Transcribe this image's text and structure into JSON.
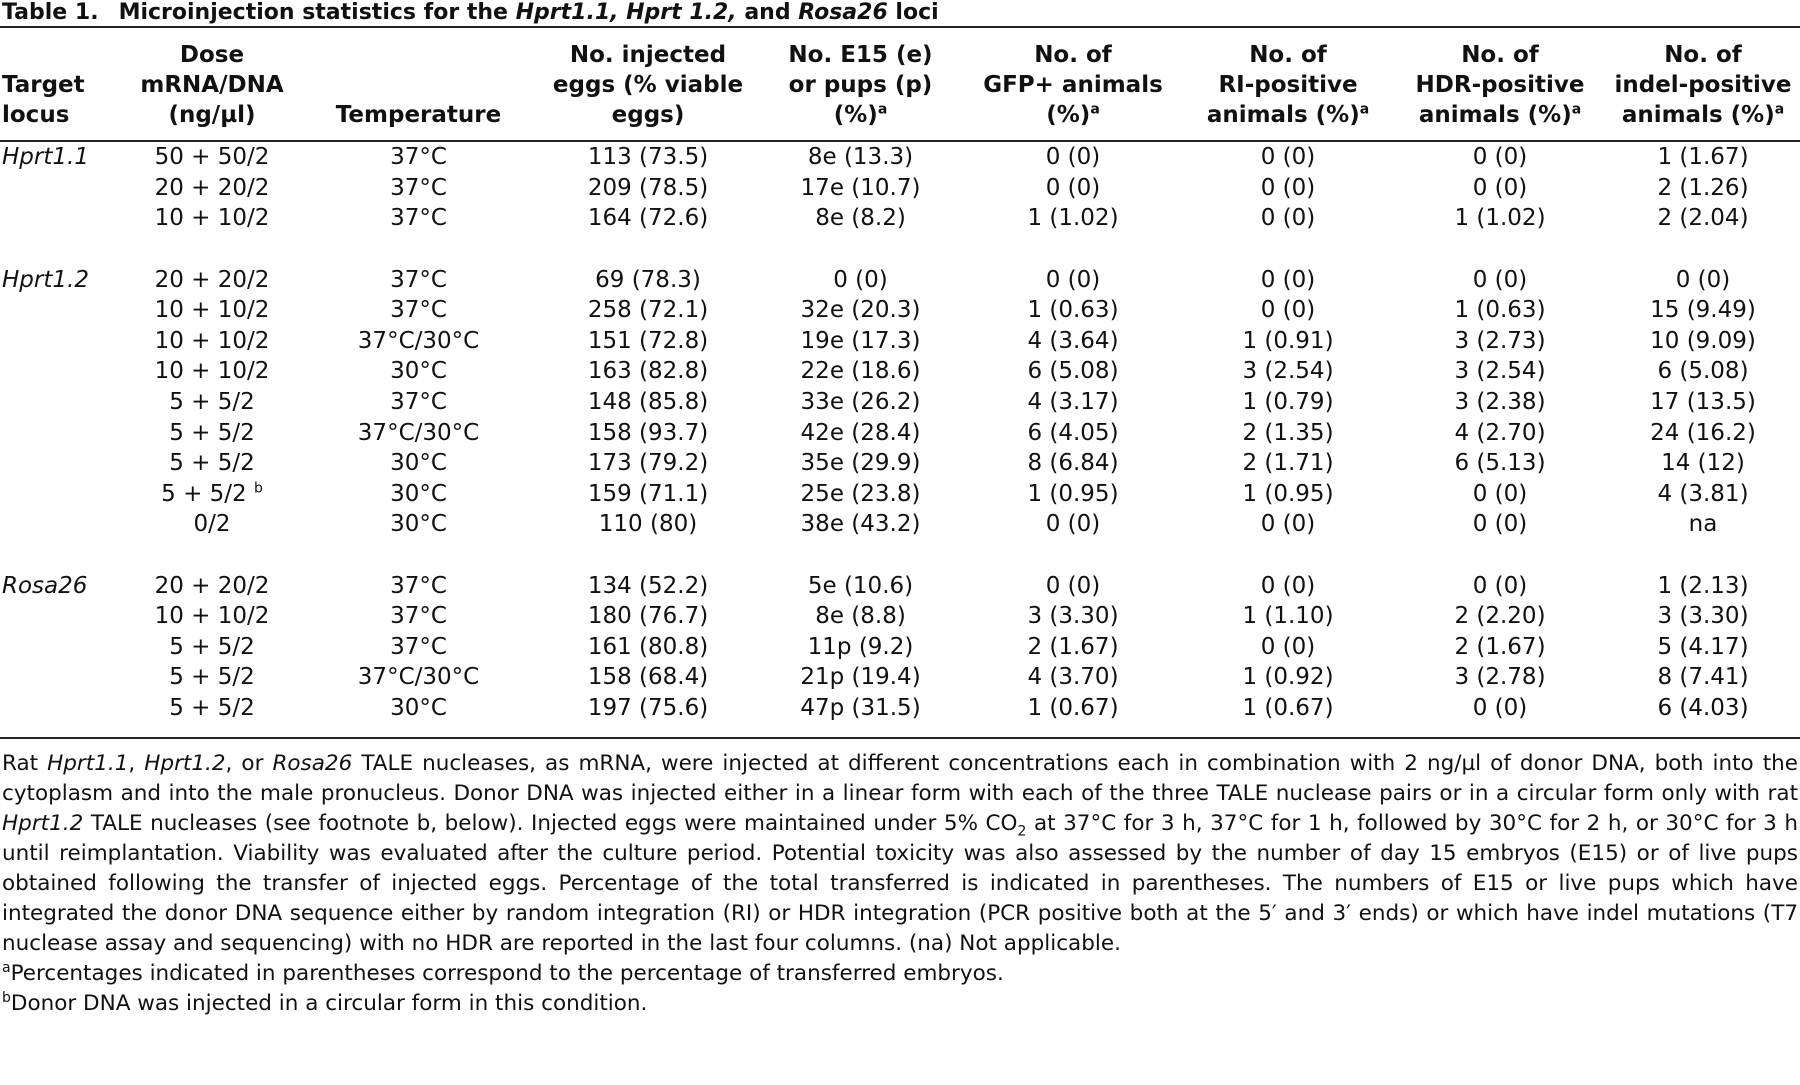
{
  "table_label": "Table 1.",
  "title": [
    {
      "text": "Microinjection statistics for the "
    },
    {
      "text": "Hprt1.1, Hprt 1.2,",
      "style": "italic"
    },
    {
      "text": " and "
    },
    {
      "text": "Rosa26",
      "style": "italic"
    },
    {
      "text": " loci"
    }
  ],
  "table": {
    "header": [
      {
        "lines": [
          "Target",
          "locus"
        ]
      },
      {
        "lines": [
          "Dose",
          "mRNA/DNA",
          "(ng/µl)"
        ]
      },
      {
        "lines": [
          "Temperature"
        ]
      },
      {
        "lines": [
          "No. injected",
          "eggs (% viable",
          "eggs)"
        ]
      },
      {
        "lines": [
          "No. E15 (e)",
          "or pups (p)",
          "(%)"
        ],
        "note": "a"
      },
      {
        "lines": [
          "No. of",
          "GFP+ animals",
          "(%)"
        ],
        "note": "a"
      },
      {
        "lines": [
          "No. of",
          "RI-positive",
          "animals (%)"
        ],
        "note": "a"
      },
      {
        "lines": [
          "No. of",
          "HDR-positive",
          "animals (%)"
        ],
        "note": "a"
      },
      {
        "lines": [
          "No. of",
          "indel-positive",
          "animals (%)"
        ],
        "note": "a"
      }
    ],
    "groups": [
      {
        "locus": "Hprt1.1",
        "rows": [
          [
            "50 + 50/2",
            "37°C",
            "113 (73.5)",
            "8e (13.3)",
            "0 (0)",
            "0 (0)",
            "0 (0)",
            "1 (1.67)"
          ],
          [
            "20 + 20/2",
            "37°C",
            "209 (78.5)",
            "17e (10.7)",
            "0 (0)",
            "0 (0)",
            "0 (0)",
            "2 (1.26)"
          ],
          [
            "10 + 10/2",
            "37°C",
            "164 (72.6)",
            "8e (8.2)",
            "1 (1.02)",
            "0 (0)",
            "1 (1.02)",
            "2 (2.04)"
          ]
        ]
      },
      {
        "locus": "Hprt1.2",
        "rows": [
          [
            "20 + 20/2",
            "37°C",
            "69 (78.3)",
            "0 (0)",
            "0 (0)",
            "0 (0)",
            "0 (0)",
            "0 (0)"
          ],
          [
            "10 + 10/2",
            "37°C",
            "258 (72.1)",
            "32e (20.3)",
            "1 (0.63)",
            "0 (0)",
            "1 (0.63)",
            "15 (9.49)"
          ],
          [
            "10 + 10/2",
            "37°C/30°C",
            "151 (72.8)",
            "19e (17.3)",
            "4 (3.64)",
            "1 (0.91)",
            "3 (2.73)",
            "10 (9.09)"
          ],
          [
            "10 + 10/2",
            "30°C",
            "163 (82.8)",
            "22e (18.6)",
            "6 (5.08)",
            "3 (2.54)",
            "3 (2.54)",
            "6 (5.08)"
          ],
          [
            "5 + 5/2",
            "37°C",
            "148 (85.8)",
            "33e (26.2)",
            "4 (3.17)",
            "1 (0.79)",
            "3 (2.38)",
            "17 (13.5)"
          ],
          [
            "5 + 5/2",
            "37°C/30°C",
            "158 (93.7)",
            "42e (28.4)",
            "6 (4.05)",
            "2 (1.35)",
            "4 (2.70)",
            "24 (16.2)"
          ],
          [
            "5 + 5/2",
            "30°C",
            "173 (79.2)",
            "35e (29.9)",
            "8 (6.84)",
            "2 (1.71)",
            "6 (5.13)",
            "14 (12)"
          ],
          [
            {
              "text": "5 + 5/2",
              "note": "b"
            },
            "30°C",
            "159 (71.1)",
            "25e (23.8)",
            "1 (0.95)",
            "1 (0.95)",
            "0 (0)",
            "4 (3.81)"
          ],
          [
            "0/2",
            "30°C",
            "110 (80)",
            "38e (43.2)",
            "0 (0)",
            "0 (0)",
            "0 (0)",
            "na"
          ]
        ]
      },
      {
        "locus": "Rosa26",
        "rows": [
          [
            "20 + 20/2",
            "37°C",
            "134 (52.2)",
            "5e (10.6)",
            "0 (0)",
            "0 (0)",
            "0 (0)",
            "1 (2.13)"
          ],
          [
            "10 + 10/2",
            "37°C",
            "180 (76.7)",
            "8e (8.8)",
            "3 (3.30)",
            "1 (1.10)",
            "2 (2.20)",
            "3 (3.30)"
          ],
          [
            "5 + 5/2",
            "37°C",
            "161 (80.8)",
            "11p (9.2)",
            "2 (1.67)",
            "0 (0)",
            "2 (1.67)",
            "5 (4.17)"
          ],
          [
            "5 + 5/2",
            "37°C/30°C",
            "158 (68.4)",
            "21p (19.4)",
            "4 (3.70)",
            "1 (0.92)",
            "3 (2.78)",
            "8 (7.41)"
          ],
          [
            "5 + 5/2",
            "30°C",
            "197 (75.6)",
            "47p (31.5)",
            "1 (0.67)",
            "1 (0.67)",
            "0 (0)",
            "6 (4.03)"
          ]
        ]
      }
    ]
  },
  "footnote": {
    "paragraph": [
      {
        "text": "Rat "
      },
      {
        "text": "Hprt1.1",
        "style": "italic"
      },
      {
        "text": ", "
      },
      {
        "text": "Hprt1.2",
        "style": "italic"
      },
      {
        "text": ", or "
      },
      {
        "text": "Rosa26",
        "style": "italic"
      },
      {
        "text": " TALE nucleases, as mRNA, were injected at different concentrations each in combination with 2 ng/µl of donor DNA, both into the cytoplasm and into the male pronucleus. Donor DNA was injected either in a linear form with each of the three TALE nuclease pairs or in a circular form only with rat "
      },
      {
        "text": "Hprt1.2",
        "style": "italic"
      },
      {
        "text": " TALE nucleases (see footnote b, below). Injected eggs were maintained under 5% CO"
      },
      {
        "text": "2",
        "style": "sub"
      },
      {
        "text": " at 37°C for 3 h, 37°C for 1 h, followed by 30°C for 2 h, or 30°C for 3 h until reimplantation. Viability was evaluated after the culture period. Potential toxicity was also assessed by the number of day 15 embryos (E15) or of live pups obtained following the transfer of injected eggs. Percentage of the total transferred is indicated in parentheses. The numbers of E15 or live pups which have integrated the donor DNA sequence either by random integration (RI) or HDR integration (PCR positive both at the 5′ and 3′ ends) or which have indel mutations (T7 nuclease assay and sequencing) with no HDR are reported in the last four columns. (na) Not applicable."
      }
    ],
    "notes": [
      {
        "mark": "a",
        "text": "Percentages indicated in parentheses correspond to the percentage of transferred embryos."
      },
      {
        "mark": "b",
        "text": "Donor DNA was injected in a circular form in this condition."
      }
    ]
  }
}
